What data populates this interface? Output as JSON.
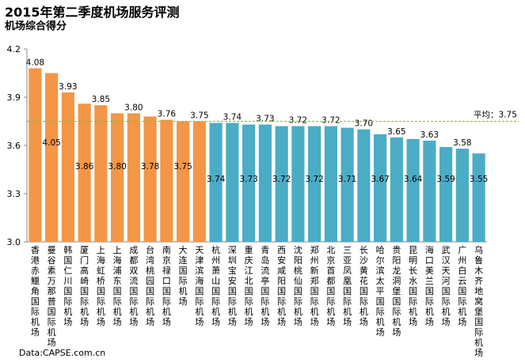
{
  "title": "2015年第二季度机场服务评测",
  "subtitle": "机场综合得分",
  "source": "Data:CAPSE.com.cn",
  "chart_data": {
    "type": "bar",
    "ylim": [
      3.0,
      4.2
    ],
    "yticks": [
      "3.0",
      "3.3",
      "3.6",
      "3.9",
      "4.2"
    ],
    "categories": [
      "香港赤鱲角国际机场",
      "曼谷素万那普国际机场",
      "韩国仁川国际机场",
      "厦门高崎国际机场",
      "上海虹桥国际机场",
      "上海浦东国际机场",
      "成都双流国际机场",
      "台湾桃园国际机场",
      "南京禄口国际机场",
      "大连国际机场",
      "天津滨海国际机场",
      "杭州萧山国际机场",
      "深圳宝安国际机场",
      "重庆江北国际机场",
      "青岛流亭国际机场",
      "西安咸阳国际机场",
      "沈阳桃仙国际机场",
      "郑州新郑国际机场",
      "北京首都国际机场",
      "三亚凤凰国际机场",
      "长沙黄花国际机场",
      "哈尔滨太平国际机场",
      "贵阳龙洞堡国际机场",
      "昆明长水国际机场",
      "海口美兰国际机场",
      "武汉天河国际机场",
      "广州白云国际机场",
      "乌鲁木齐地窝堡国际机场"
    ],
    "values": [
      4.08,
      4.05,
      3.93,
      3.86,
      3.85,
      3.8,
      3.8,
      3.78,
      3.76,
      3.75,
      3.75,
      3.74,
      3.74,
      3.73,
      3.73,
      3.72,
      3.72,
      3.72,
      3.72,
      3.71,
      3.7,
      3.67,
      3.65,
      3.64,
      3.63,
      3.59,
      3.58,
      3.55
    ],
    "labels": [
      "4.08",
      "4.05",
      "3.93",
      "3.86",
      "3.85",
      "3.80",
      "3.80",
      "3.78",
      "3.76",
      "3.75",
      "3.75",
      "3.74",
      "3.74",
      "3.73",
      "3.73",
      "3.72",
      "3.72",
      "3.72",
      "3.72",
      "3.71",
      "3.70",
      "3.67",
      "3.65",
      "3.64",
      "3.63",
      "3.59",
      "3.58",
      "3.55"
    ],
    "bar_colors": {
      "highlight": "#F39646",
      "normal": "#4BACC6"
    },
    "highlight_count": 11,
    "average": {
      "label": "平均：3.75",
      "value": 3.75,
      "color": "#8FB050"
    }
  }
}
